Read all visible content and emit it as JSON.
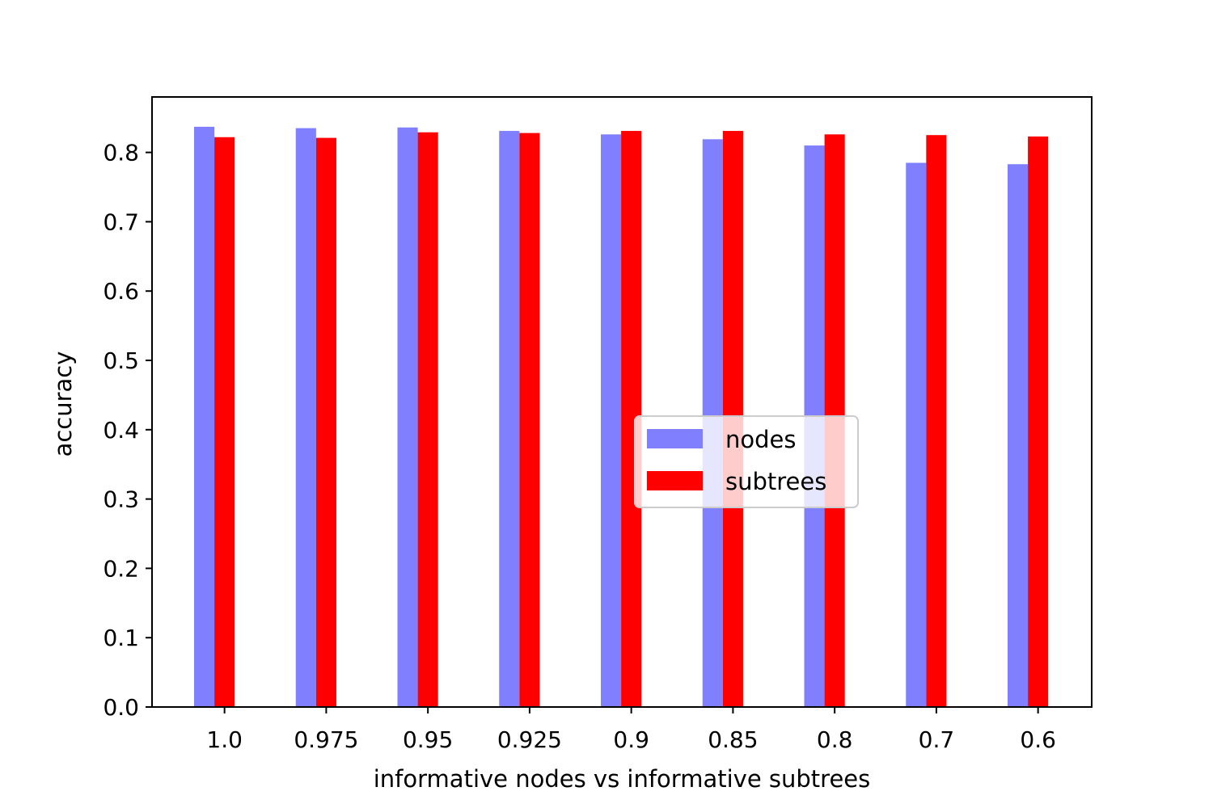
{
  "chart_data": {
    "type": "bar",
    "categories": [
      "1.0",
      "0.975",
      "0.95",
      "0.925",
      "0.9",
      "0.85",
      "0.8",
      "0.7",
      "0.6"
    ],
    "series": [
      {
        "name": "nodes",
        "color": "#8080ff",
        "values": [
          0.837,
          0.835,
          0.836,
          0.831,
          0.826,
          0.819,
          0.81,
          0.785,
          0.783
        ]
      },
      {
        "name": "subtrees",
        "color": "#ff0000",
        "values": [
          0.822,
          0.821,
          0.829,
          0.828,
          0.831,
          0.831,
          0.826,
          0.825,
          0.823
        ]
      }
    ],
    "xlabel": "informative nodes vs informative subtrees",
    "ylabel": "accuracy",
    "ylim": [
      0,
      0.88
    ],
    "yticks": [
      0.0,
      0.1,
      0.2,
      0.3,
      0.4,
      0.5,
      0.6,
      0.7,
      0.8
    ],
    "grid": false,
    "legend_position": "center-right"
  }
}
